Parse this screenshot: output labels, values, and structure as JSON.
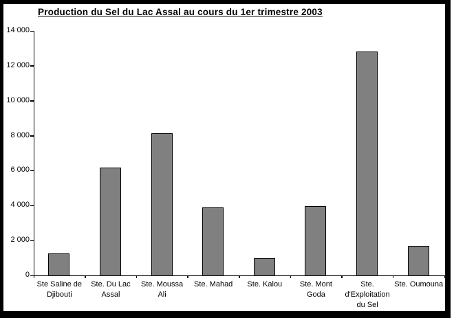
{
  "chart_data": {
    "type": "bar",
    "title": "Production du Sel du Lac Assal au cours du 1er trimestre 2003",
    "categories": [
      "Ste Saline de Djibouti",
      "Ste. Du Lac Assal",
      "Ste. Moussa Ali",
      "Ste. Mahad",
      "Ste. Kalou",
      "Ste. Mont Goda",
      "Ste. d'Exploitation du Sel",
      "Ste. Oumouna"
    ],
    "category_label_lines": [
      [
        "Ste Saline de",
        "Djibouti"
      ],
      [
        "Ste. Du Lac",
        "Assal"
      ],
      [
        "Ste. Moussa",
        "Ali"
      ],
      [
        "Ste. Mahad"
      ],
      [
        "Ste. Kalou"
      ],
      [
        "Ste. Mont",
        "Goda"
      ],
      [
        "Ste.",
        "d'Exploitation",
        "du Sel"
      ],
      [
        "Ste. Oumouna"
      ]
    ],
    "values": [
      1250,
      6170,
      8100,
      3890,
      1000,
      3950,
      12800,
      1690
    ],
    "xlabel": "",
    "ylabel": "",
    "ylim": [
      0,
      14000
    ],
    "ytick_step": 2000,
    "ytick_labels": [
      "0",
      "2 000",
      "4 000",
      "6 000",
      "8 000",
      "10 000",
      "12 000",
      "14 000"
    ],
    "grid": false,
    "legend_position": "none",
    "bar_color": "#808080",
    "bar_border_color": "#000000",
    "frame_color": "#000000",
    "background_color": "#ffffff"
  }
}
